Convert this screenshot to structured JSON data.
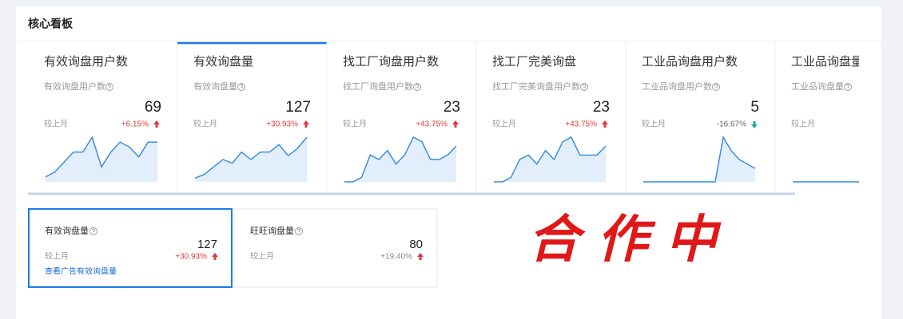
{
  "header": {
    "title": "核心看板"
  },
  "selected_card": 1,
  "cards": [
    {
      "title": "有效询盘用户数",
      "subtitle": "有效询盘用户数",
      "value": 69,
      "compare_label": "较上月",
      "change": "+6.15%",
      "trend": "up",
      "sparkline": [
        1,
        2,
        4,
        6,
        6,
        9,
        3,
        6,
        8,
        7,
        5,
        8,
        8
      ]
    },
    {
      "title": "有效询盘量",
      "subtitle": "有效询盘量",
      "value": 127,
      "compare_label": "较上月",
      "change": "+30.93%",
      "trend": "up",
      "sparkline": [
        1,
        2,
        4,
        6,
        5,
        8,
        6,
        8,
        8,
        10,
        7,
        9,
        12
      ]
    },
    {
      "title": "找工厂询盘用户数",
      "subtitle": "找工厂询盘用户数",
      "value": 23,
      "compare_label": "较上月",
      "change": "+43.75%",
      "trend": "up",
      "sparkline": [
        0,
        0,
        1,
        6,
        5,
        7,
        4,
        6,
        10,
        9,
        5,
        5,
        6,
        8
      ]
    },
    {
      "title": "找工厂完美询盘",
      "subtitle": "找工厂完美询盘用户数",
      "value": 23,
      "compare_label": "较上月",
      "change": "+43.75%",
      "trend": "up",
      "sparkline": [
        0,
        0,
        1,
        5,
        6,
        4,
        7,
        5,
        9,
        10,
        6,
        6,
        6,
        8
      ]
    },
    {
      "title": "工业品询盘用户数",
      "subtitle": "工业品询盘用户数",
      "value": 5,
      "compare_label": "较上月",
      "change": "-16.67%",
      "trend": "down",
      "sparkline": [
        0,
        0,
        0,
        0,
        0,
        0,
        0,
        0,
        0,
        0,
        10,
        7,
        5,
        4,
        3
      ]
    },
    {
      "title": "工业品询盘量",
      "subtitle": "工业品询盘量",
      "compare_label": "较上月",
      "sparkline": [
        0,
        0,
        0,
        0,
        0,
        0,
        0,
        0
      ]
    }
  ],
  "cards2": [
    {
      "title": "有效询盘量",
      "value": 127,
      "compare_label": "较上月",
      "change": "+30.93%",
      "trend": "up",
      "link": "查看广告有效询盘量"
    },
    {
      "title": "旺旺询盘量",
      "value": 80,
      "compare_label": "较上月",
      "change": "+19.40%",
      "trend": "up"
    }
  ],
  "stamp": "合作中"
}
